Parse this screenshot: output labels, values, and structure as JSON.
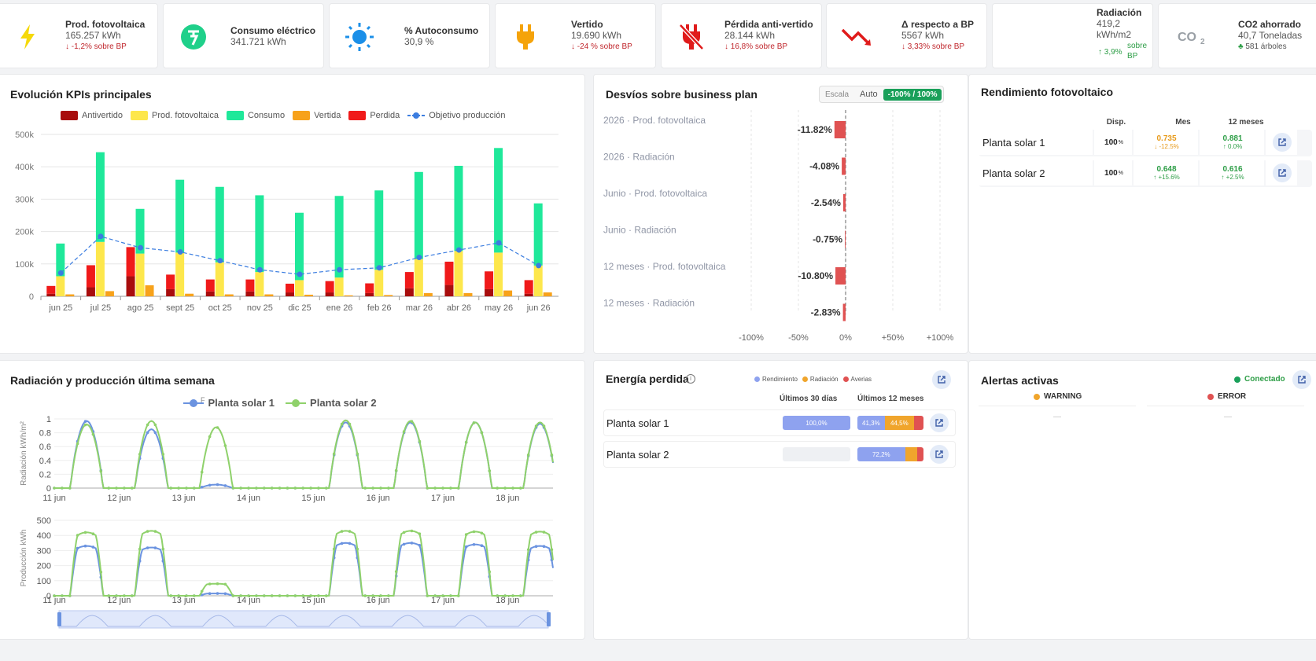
{
  "kpis": [
    {
      "title": "Prod. fotovoltaica",
      "value": "165.257 kWh",
      "delta": "-1,2% sobre BP",
      "icon": "lightning-icon"
    },
    {
      "title": "Consumo eléctrico",
      "value": "341.721 kWh",
      "delta": "",
      "icon": "meter-icon"
    },
    {
      "title": "% Autoconsumo",
      "value": "30,9 %",
      "delta": "",
      "icon": "sun-icon"
    },
    {
      "title": "Vertido",
      "value": "19.690 kWh",
      "delta": "-24 % sobre BP",
      "icon": "plug-icon"
    },
    {
      "title": "Pérdida anti-vertido",
      "value": "28.144 kWh",
      "delta": "16,8% sobre BP",
      "icon": "plug-off-icon"
    },
    {
      "title": "Δ respecto a BP",
      "value": "5567 kWh",
      "delta": "3,33% sobre BP",
      "icon": "trend-down-icon"
    },
    {
      "title": "Radiación",
      "value1": "419,2",
      "value2": "kWh/m2",
      "delta1": "3,9%",
      "delta2": "sobre",
      "delta3": "BP",
      "icon": "radiation-icon"
    },
    {
      "title": "CO2 ahorrado",
      "value": "40,7 Toneladas",
      "delta": "581 árboles",
      "icon": "co2-icon"
    }
  ],
  "evol": {
    "title": "Evolución KPIs principales",
    "legend": [
      "Antivertido",
      "Prod. fotovoltaica",
      "Consumo",
      "Vertida",
      "Perdida",
      "Objetivo producción"
    ],
    "colors": {
      "antivertido": "#a80d0d",
      "prod": "#fde74c",
      "consumo": "#1fe89a",
      "vertida": "#f7a21b",
      "perdida": "#f01a1a",
      "objetivo": "#3b7de0"
    }
  },
  "chart_data": [
    {
      "type": "bar",
      "title": "Evolución KPIs principales",
      "categories": [
        "jun 25",
        "jul 25",
        "ago 25",
        "sept 25",
        "oct 25",
        "nov 25",
        "dic 25",
        "ene 26",
        "feb 26",
        "mar 26",
        "abr 26",
        "may 26",
        "jun 26"
      ],
      "ylim": [
        0,
        500000
      ],
      "yticks": [
        "0",
        "100k",
        "200k",
        "300k",
        "400k",
        "500k"
      ],
      "series": [
        {
          "name": "Antivertido",
          "values": [
            8000,
            28000,
            62000,
            22000,
            15000,
            15000,
            12000,
            12000,
            10000,
            25000,
            35000,
            22000,
            8000
          ]
        },
        {
          "name": "Perdida",
          "values": [
            24000,
            68000,
            90000,
            45000,
            37000,
            37000,
            27000,
            35000,
            30000,
            50000,
            72000,
            55000,
            42000
          ]
        },
        {
          "name": "Prod. fotovoltaica",
          "values": [
            62000,
            168000,
            132000,
            135000,
            105000,
            75000,
            50000,
            58000,
            82000,
            115000,
            140000,
            135000,
            95000
          ]
        },
        {
          "name": "Consumo",
          "values": [
            163000,
            445000,
            270000,
            360000,
            338000,
            312000,
            258000,
            310000,
            327000,
            384000,
            403000,
            458000,
            287000
          ]
        },
        {
          "name": "Vertida",
          "values": [
            6000,
            16000,
            34000,
            8000,
            6000,
            6000,
            5000,
            3000,
            4000,
            10000,
            10000,
            18000,
            12000
          ]
        },
        {
          "name": "Objetivo producción",
          "values": [
            72000,
            185000,
            150000,
            137000,
            110000,
            82000,
            68000,
            82000,
            88000,
            120000,
            143000,
            165000,
            95000
          ]
        }
      ]
    },
    {
      "type": "bar",
      "title": "Desvíos sobre business plan",
      "categories": [
        "2026 · Prod. fotovoltaica",
        "2026 · Radiación",
        "Junio · Prod. fotovoltaica",
        "Junio · Radiación",
        "12 meses · Prod. fotovoltaica",
        "12 meses · Radiación"
      ],
      "values": [
        -11.82,
        -4.08,
        -2.54,
        -0.75,
        -10.8,
        -2.83
      ],
      "labels": [
        "-11.82%",
        "-4.08%",
        "-2.54%",
        "-0.75%",
        "-10.80%",
        "-2.83%"
      ],
      "xlim": [
        -100,
        100
      ],
      "xticks": [
        "-100%",
        "-50%",
        "0%",
        "+50%",
        "+100%"
      ]
    },
    {
      "type": "line",
      "title": "Radiación y producción última semana",
      "x": [
        "11 jun",
        "12 jun",
        "13 jun",
        "14 jun",
        "15 jun",
        "16 jun",
        "17 jun",
        "18 jun"
      ],
      "ylabel": "Radiación kWh/m²",
      "ylim": [
        0,
        1
      ],
      "yticks": [
        "0",
        "0.2",
        "0.4",
        "0.6",
        "0.8",
        "1"
      ],
      "series": [
        {
          "name": "Planta solar 1",
          "values": [
            0.97,
            0.85,
            0.05,
            0.0,
            0.95,
            0.95,
            0.95,
            0.93
          ]
        },
        {
          "name": "Planta solar 2",
          "values": [
            0.92,
            0.97,
            0.88,
            0.0,
            0.98,
            0.97,
            0.95,
            0.95
          ]
        }
      ]
    },
    {
      "type": "line",
      "x": [
        "11 jun",
        "12 jun",
        "13 jun",
        "14 jun",
        "15 jun",
        "16 jun",
        "17 jun",
        "18 jun"
      ],
      "ylabel": "Producción kWh",
      "ylim": [
        0,
        500
      ],
      "yticks": [
        "0",
        "100",
        "200",
        "300",
        "400",
        "500"
      ],
      "series": [
        {
          "name": "Planta solar 1",
          "values": [
            330,
            320,
            15,
            0,
            350,
            350,
            340,
            330
          ]
        },
        {
          "name": "Planta solar 2",
          "values": [
            420,
            430,
            80,
            0,
            430,
            430,
            425,
            425
          ]
        }
      ]
    }
  ],
  "desv": {
    "title": "Desvíos sobre business plan",
    "tabs": [
      "Escala",
      "Auto",
      "-100% / 100%"
    ]
  },
  "weekly": {
    "title": "Radiación y producción última semana",
    "legend_stub": "F",
    "legend": [
      "Planta solar 1",
      "Planta solar 2"
    ],
    "colors": [
      "#6b93e0",
      "#8fd16b"
    ]
  },
  "rend": {
    "title": "Rendimiento fotovoltaico",
    "headers": [
      "Disp.",
      "Mes",
      "12 meses"
    ],
    "rows": [
      {
        "name": "Planta solar 1",
        "disp": "100",
        "unit": "%",
        "mes": "0.735",
        "mes_d": "-12.5%",
        "y12": "0.881",
        "y12_d": "0.0%"
      },
      {
        "name": "Planta solar 2",
        "disp": "100",
        "unit": "%",
        "mes": "0.648",
        "mes_d": "+15.6%",
        "y12": "0.616",
        "y12_d": "+2.5%"
      }
    ]
  },
  "energia": {
    "title": "Energía perdida",
    "legend": [
      "Rendimiento",
      "Radiación",
      "Averias"
    ],
    "colors": [
      "#8ea2ef",
      "#f0a52c",
      "#e05252"
    ],
    "headers": [
      "Últimos 30 días",
      "Últimos 12 meses"
    ],
    "rows": [
      {
        "name": "Planta solar 1",
        "d30": [
          {
            "v": 100,
            "l": "100,0%"
          }
        ],
        "m12": [
          {
            "v": 41.3,
            "l": "41,3%"
          },
          {
            "v": 44.5,
            "l": "44,5%"
          },
          {
            "v": 14.2,
            "l": ""
          }
        ]
      },
      {
        "name": "Planta solar 2",
        "d30": [],
        "m12": [
          {
            "v": 72.2,
            "l": "72,2%"
          },
          {
            "v": 17.8,
            "l": ""
          },
          {
            "v": 10,
            "l": ""
          }
        ]
      }
    ]
  },
  "alertas": {
    "title": "Alertas activas",
    "status": "Conectado",
    "cols": [
      "WARNING",
      "ERROR"
    ],
    "empty": "—"
  }
}
